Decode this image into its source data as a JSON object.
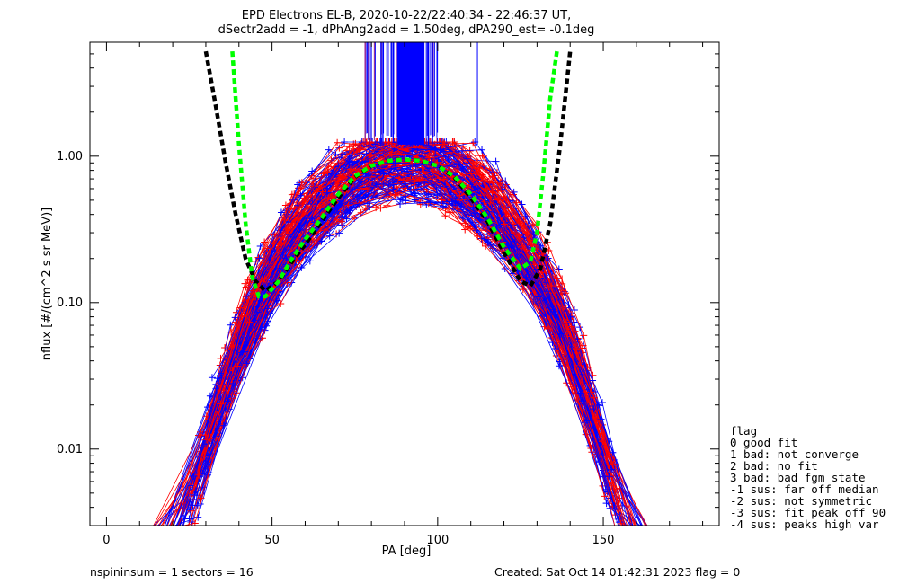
{
  "chart_data": {
    "type": "scatter",
    "title_line1": "EPD Electrons EL-B, 2020-10-22/22:40:34 - 22:46:37 UT,",
    "title_line2": "dSectr2add = -1, dPhAng2add = 1.50deg, dPA290_est=  -0.1deg",
    "xlabel": "PA [deg]",
    "ylabel": "nflux [#/(cm^2 s sr MeV)]",
    "xlim": [
      -5,
      185
    ],
    "ylim": [
      0.003,
      6
    ],
    "y_scale": "log",
    "x_ticks": [
      0,
      50,
      100,
      150
    ],
    "y_ticks": [
      0.01,
      0.1,
      1.0
    ],
    "y_tick_labels": [
      "0.01",
      "0.10",
      "1.00"
    ],
    "series": [
      {
        "color": "#ff0000",
        "marker": "+",
        "line": true
      },
      {
        "color": "#0000ff",
        "marker": "+",
        "line": true
      }
    ],
    "fit_curves": [
      {
        "color": "#000000",
        "style": "dashed",
        "x": [
          30,
          33,
          36,
          39,
          42,
          45,
          48,
          52,
          56,
          60,
          65,
          70,
          75,
          80,
          85,
          90,
          95,
          100,
          105,
          110,
          115,
          120,
          125,
          128,
          131,
          134,
          137,
          140
        ],
        "y": [
          5.2,
          2.2,
          0.9,
          0.4,
          0.2,
          0.14,
          0.12,
          0.14,
          0.19,
          0.25,
          0.36,
          0.52,
          0.72,
          0.86,
          0.93,
          0.95,
          0.93,
          0.86,
          0.72,
          0.52,
          0.36,
          0.22,
          0.14,
          0.13,
          0.17,
          0.35,
          1.2,
          5.2
        ]
      },
      {
        "color": "#00ff00",
        "style": "dashed",
        "x": [
          38,
          40,
          42,
          44,
          46,
          48,
          52,
          56,
          60,
          65,
          70,
          75,
          80,
          85,
          90,
          95,
          100,
          105,
          110,
          115,
          120,
          125,
          128,
          130,
          132,
          134,
          136
        ],
        "y": [
          5.2,
          1.2,
          0.35,
          0.15,
          0.11,
          0.11,
          0.14,
          0.2,
          0.27,
          0.38,
          0.55,
          0.73,
          0.86,
          0.93,
          0.95,
          0.93,
          0.86,
          0.73,
          0.55,
          0.38,
          0.24,
          0.17,
          0.19,
          0.3,
          0.8,
          2.5,
          5.2
        ]
      }
    ],
    "legend": {
      "placement": "right",
      "title": "flag",
      "entries": [
        " 0 good fit",
        " 1 bad: not converge",
        " 2 bad: no fit",
        " 3 bad: bad fgm state",
        "-1 sus: far off median",
        "-2 sus: not symmetric",
        "-3 sus: fit peak off 90",
        "-4 sus: peaks high var"
      ]
    }
  },
  "footer": {
    "left": "nspininsum =  1  sectors = 16",
    "right": "Created: Sat Oct 14 01:42:31 2023   flag = 0"
  }
}
